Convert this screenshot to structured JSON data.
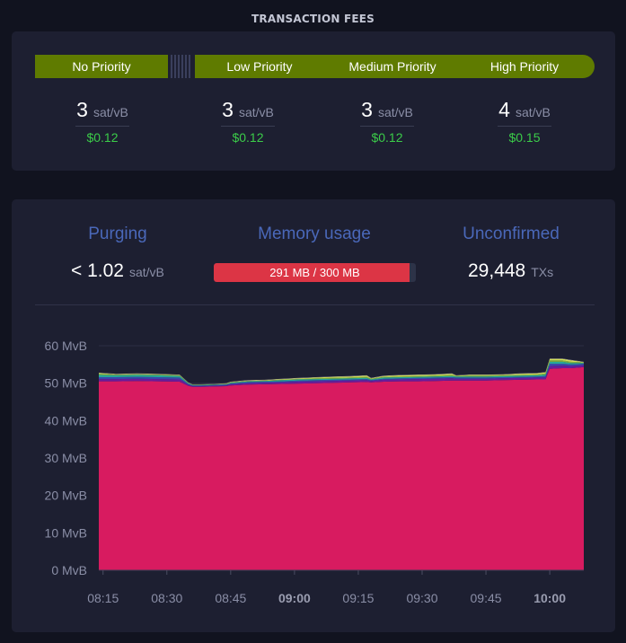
{
  "fees": {
    "title": "TRANSACTION FEES",
    "priorities": [
      "No Priority",
      "Low Priority",
      "Medium Priority",
      "High Priority"
    ],
    "columns": [
      {
        "rate": "3",
        "unit": "sat/vB",
        "usd": "$0.12"
      },
      {
        "rate": "3",
        "unit": "sat/vB",
        "usd": "$0.12"
      },
      {
        "rate": "3",
        "unit": "sat/vB",
        "usd": "$0.12"
      },
      {
        "rate": "4",
        "unit": "sat/vB",
        "usd": "$0.15"
      }
    ]
  },
  "stats": {
    "purging": {
      "title": "Purging",
      "value": "< 1.02",
      "unit": "sat/vB"
    },
    "memory": {
      "title": "Memory usage",
      "value": "291 MB / 300 MB",
      "used": 291,
      "max": 300
    },
    "unconfirmed": {
      "title": "Unconfirmed",
      "value": "29,448",
      "unit": "TXs"
    }
  },
  "colors": {
    "accent": "#5f7b00",
    "title_blue": "#4a68b9",
    "memory_red": "#dc3545",
    "usd_green": "#3bcc49",
    "area_main": "#d81b60"
  },
  "chart_data": {
    "type": "area",
    "ylabel_unit": "MvB",
    "ylim": [
      0,
      60
    ],
    "yticks": [
      "0 MvB",
      "10 MvB",
      "20 MvB",
      "30 MvB",
      "40 MvB",
      "50 MvB",
      "60 MvB"
    ],
    "xticks": [
      {
        "label": "08:15",
        "t": 0,
        "bold": false
      },
      {
        "label": "08:30",
        "t": 15,
        "bold": false
      },
      {
        "label": "08:45",
        "t": 30,
        "bold": false
      },
      {
        "label": "09:00",
        "t": 45,
        "bold": true
      },
      {
        "label": "09:15",
        "t": 60,
        "bold": false
      },
      {
        "label": "09:30",
        "t": 75,
        "bold": false
      },
      {
        "label": "09:45",
        "t": 90,
        "bold": false
      },
      {
        "label": "10:00",
        "t": 105,
        "bold": true
      }
    ],
    "x_minutes": [
      -1,
      3,
      8,
      13,
      18,
      20,
      21,
      23,
      26,
      29,
      30,
      34,
      38,
      42,
      46,
      50,
      54,
      58,
      62,
      63,
      66,
      70,
      74,
      78,
      82,
      83,
      86,
      90,
      94,
      98,
      102,
      104,
      105,
      108,
      110,
      112,
      113
    ],
    "series": [
      {
        "name": "base",
        "color": "#d81b60",
        "values": [
          50.5,
          50.5,
          50.6,
          50.5,
          50.4,
          49.3,
          49.0,
          49.0,
          49.1,
          49.2,
          49.4,
          49.6,
          49.7,
          49.8,
          49.9,
          50.0,
          50.1,
          50.2,
          50.3,
          50.2,
          50.4,
          50.5,
          50.5,
          50.6,
          50.7,
          50.7,
          50.7,
          50.7,
          50.8,
          50.9,
          51.0,
          51.0,
          53.8,
          54.0,
          54.0,
          54.2,
          54.3
        ]
      },
      {
        "name": "purple",
        "color": "#6a1b9a",
        "values": [
          0.6,
          0.6,
          0.6,
          0.6,
          0.6,
          0.3,
          0.2,
          0.2,
          0.2,
          0.2,
          0.3,
          0.4,
          0.4,
          0.4,
          0.5,
          0.5,
          0.5,
          0.5,
          0.5,
          0.4,
          0.5,
          0.5,
          0.6,
          0.6,
          0.6,
          0.5,
          0.5,
          0.5,
          0.5,
          0.5,
          0.5,
          0.5,
          0.8,
          0.7,
          0.6,
          0.5,
          0.5
        ]
      },
      {
        "name": "blue",
        "color": "#3949ab",
        "values": [
          0.5,
          0.5,
          0.5,
          0.5,
          0.5,
          0.2,
          0.2,
          0.2,
          0.2,
          0.2,
          0.2,
          0.3,
          0.3,
          0.3,
          0.3,
          0.3,
          0.3,
          0.3,
          0.3,
          0.2,
          0.3,
          0.3,
          0.3,
          0.3,
          0.3,
          0.3,
          0.3,
          0.3,
          0.3,
          0.3,
          0.3,
          0.4,
          0.6,
          0.5,
          0.4,
          0.4,
          0.4
        ]
      },
      {
        "name": "teal",
        "color": "#26a69a",
        "values": [
          0.6,
          0.5,
          0.5,
          0.5,
          0.4,
          0.2,
          0.1,
          0.1,
          0.1,
          0.1,
          0.2,
          0.2,
          0.2,
          0.3,
          0.3,
          0.3,
          0.3,
          0.3,
          0.3,
          0.2,
          0.3,
          0.3,
          0.3,
          0.3,
          0.3,
          0.3,
          0.3,
          0.3,
          0.3,
          0.3,
          0.3,
          0.4,
          0.5,
          0.5,
          0.4,
          0.3,
          0.2
        ]
      },
      {
        "name": "green",
        "color": "#7cb342",
        "values": [
          0.3,
          0.2,
          0.2,
          0.2,
          0.2,
          0.1,
          0.1,
          0.1,
          0.1,
          0.1,
          0.1,
          0.1,
          0.1,
          0.1,
          0.1,
          0.2,
          0.2,
          0.2,
          0.3,
          0.2,
          0.2,
          0.2,
          0.2,
          0.2,
          0.3,
          0.1,
          0.2,
          0.2,
          0.2,
          0.2,
          0.2,
          0.3,
          0.4,
          0.4,
          0.3,
          0.2,
          0.1
        ]
      },
      {
        "name": "yellow",
        "color": "#d4e157",
        "values": [
          0.2,
          0.1,
          0.1,
          0.1,
          0.1,
          0.0,
          0.0,
          0.0,
          0.0,
          0.1,
          0.1,
          0.1,
          0.1,
          0.2,
          0.2,
          0.2,
          0.3,
          0.3,
          0.3,
          0.1,
          0.2,
          0.3,
          0.3,
          0.3,
          0.3,
          0.1,
          0.2,
          0.2,
          0.2,
          0.3,
          0.3,
          0.3,
          0.4,
          0.4,
          0.4,
          0.2,
          0.1
        ]
      },
      {
        "name": "grey",
        "color": "#9e9e9e",
        "values": [
          0.1,
          0.1,
          0.1,
          0.1,
          0.1,
          0.1,
          0.1,
          0.1,
          0.1,
          0.1,
          0.1,
          0.1,
          0.1,
          0.1,
          0.1,
          0.1,
          0.1,
          0.1,
          0.1,
          0.1,
          0.1,
          0.1,
          0.1,
          0.1,
          0.1,
          0.1,
          0.1,
          0.1,
          0.1,
          0.1,
          0.1,
          0.1,
          0.1,
          0.1,
          0.1,
          0.1,
          0.1
        ]
      }
    ]
  }
}
